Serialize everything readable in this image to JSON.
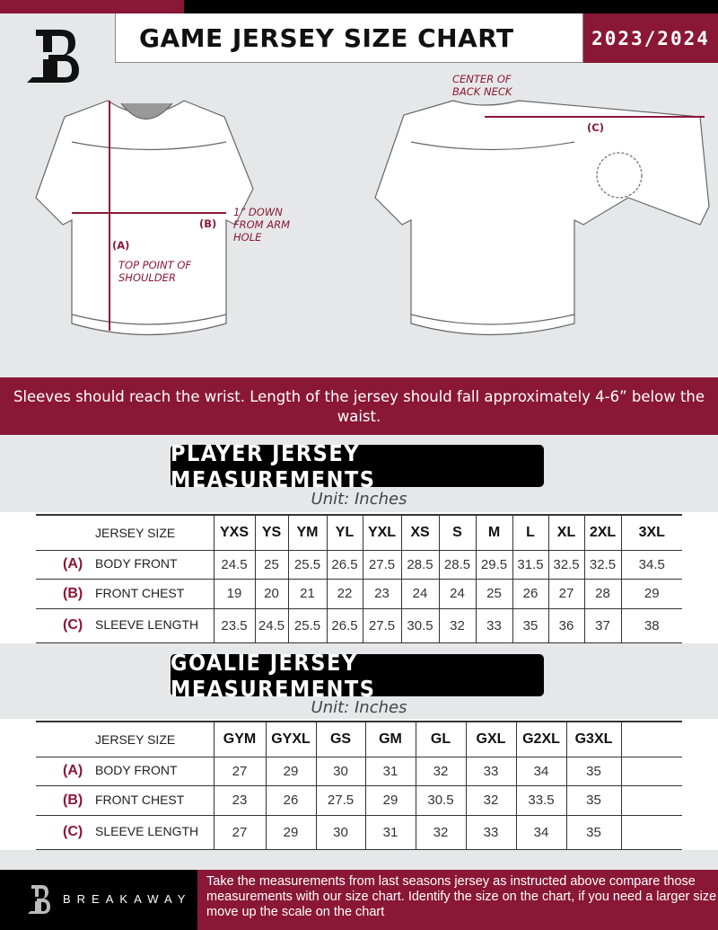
{
  "header": {
    "title": "GAME JERSEY SIZE CHART",
    "season": "2023/2024",
    "logo_letter": "B"
  },
  "diagram": {
    "labels": {
      "a_code": "(A)",
      "a_text": "TOP POINT OF SHOULDER",
      "b_code": "(B)",
      "b_text": "1” DOWN FROM ARM HOLE",
      "c_code": "(C)",
      "c_text": "CENTER OF BACK NECK"
    }
  },
  "banner": {
    "text": "Sleeves should reach the wrist. Length of the jersey should fall approximately 4-6” below the waist."
  },
  "player": {
    "title": "PLAYER JERSEY MEASUREMENTS",
    "unit": "Unit: Inches",
    "header_label": "JERSEY SIZE",
    "sizes": [
      "YXS",
      "YS",
      "YM",
      "YL",
      "YXL",
      "XS",
      "S",
      "M",
      "L",
      "XL",
      "2XL",
      "3XL"
    ],
    "rows": [
      {
        "code": "(A)",
        "label": "BODY FRONT",
        "values": [
          "24.5",
          "25",
          "25.5",
          "26.5",
          "27.5",
          "28.5",
          "28.5",
          "29.5",
          "31.5",
          "32.5",
          "32.5",
          "34.5"
        ]
      },
      {
        "code": "(B)",
        "label": "FRONT CHEST",
        "values": [
          "19",
          "20",
          "21",
          "22",
          "23",
          "24",
          "24",
          "25",
          "26",
          "27",
          "28",
          "29"
        ]
      },
      {
        "code": "(C)",
        "label": "SLEEVE LENGTH",
        "values": [
          "23.5",
          "24.5",
          "25.5",
          "26.5",
          "27.5",
          "30.5",
          "32",
          "33",
          "35",
          "36",
          "37",
          "38"
        ]
      }
    ]
  },
  "goalie": {
    "title": "GOALIE JERSEY MEASUREMENTS",
    "unit": "Unit: Inches",
    "header_label": "JERSEY SIZE",
    "sizes": [
      "GYM",
      "GYXL",
      "GS",
      "GM",
      "GL",
      "GXL",
      "G2XL",
      "G3XL",
      ""
    ],
    "rows": [
      {
        "code": "(A)",
        "label": "BODY FRONT",
        "values": [
          "27",
          "29",
          "30",
          "31",
          "32",
          "33",
          "34",
          "35",
          ""
        ]
      },
      {
        "code": "(B)",
        "label": "FRONT CHEST",
        "values": [
          "23",
          "26",
          "27.5",
          "29",
          "30.5",
          "32",
          "33.5",
          "35",
          ""
        ]
      },
      {
        "code": "(C)",
        "label": "SLEEVE LENGTH",
        "values": [
          "27",
          "29",
          "30",
          "31",
          "32",
          "33",
          "34",
          "35",
          ""
        ]
      }
    ]
  },
  "footer": {
    "brand": "BREAKAWAY",
    "text": "Take the measurements from last seasons jersey as instructed above compare those measurements  with our size chart. Identify the size on the chart, if you need a larger size move up the scale on the chart"
  },
  "colors": {
    "accent": "#8a1736",
    "dark": "#000000",
    "background": "#e6e7e8"
  }
}
